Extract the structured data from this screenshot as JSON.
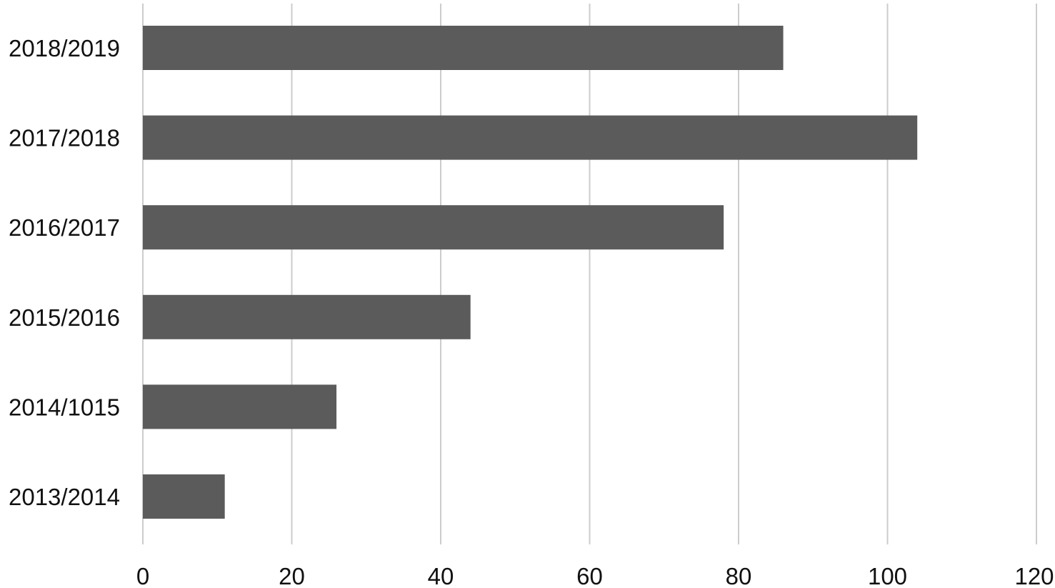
{
  "chart_data": {
    "type": "bar",
    "orientation": "horizontal",
    "title": "",
    "xlabel": "",
    "ylabel": "",
    "categories": [
      "2018/2019",
      "2017/2018",
      "2016/2017",
      "2015/2016",
      "2014/1015",
      "2013/2014"
    ],
    "series": [
      {
        "values": [
          86,
          104,
          78,
          44,
          26,
          11
        ]
      }
    ],
    "xlim": [
      0,
      120
    ],
    "x_ticks": [
      "0",
      "20",
      "40",
      "60",
      "80",
      "100",
      "120"
    ],
    "grid": "vertical",
    "legend": "none",
    "bar_color": "#5b5b5b",
    "grid_color": "#cccccc"
  }
}
